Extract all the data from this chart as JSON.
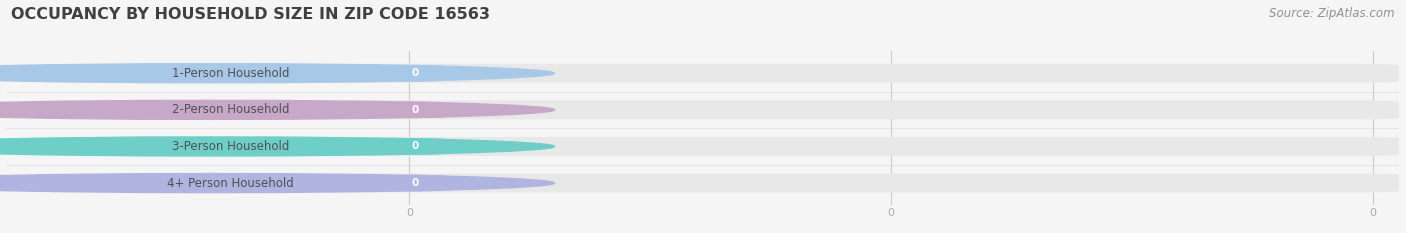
{
  "title": "OCCUPANCY BY HOUSEHOLD SIZE IN ZIP CODE 16563",
  "source": "Source: ZipAtlas.com",
  "categories": [
    "1-Person Household",
    "2-Person Household",
    "3-Person Household",
    "4+ Person Household"
  ],
  "values": [
    0,
    0,
    0,
    0
  ],
  "accent_colors": [
    "#a8c8e8",
    "#c8a8c8",
    "#6dcfc8",
    "#b0b4e0"
  ],
  "background_color": "#f5f5f5",
  "bar_bg_color": "#e8e8e8",
  "label_bg_color": "#ffffff",
  "title_color": "#404040",
  "label_color": "#505050",
  "value_color": "#ffffff",
  "source_color": "#909090",
  "title_fontsize": 11.5,
  "label_fontsize": 8.5,
  "value_fontsize": 7.5,
  "source_fontsize": 8.5,
  "figsize": [
    14.06,
    2.33
  ],
  "dpi": 100
}
